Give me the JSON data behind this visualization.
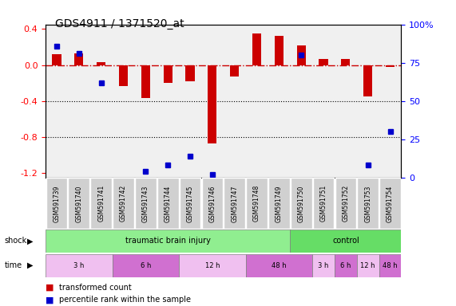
{
  "title": "GDS4911 / 1371520_at",
  "samples": [
    "GSM591739",
    "GSM591740",
    "GSM591741",
    "GSM591742",
    "GSM591743",
    "GSM591744",
    "GSM591745",
    "GSM591746",
    "GSM591747",
    "GSM591748",
    "GSM591749",
    "GSM591750",
    "GSM591751",
    "GSM591752",
    "GSM591753",
    "GSM591754"
  ],
  "red_values": [
    0.12,
    0.13,
    0.03,
    -0.23,
    -0.37,
    -0.2,
    -0.18,
    -0.87,
    -0.13,
    0.35,
    0.32,
    0.22,
    0.07,
    0.07,
    -0.35,
    -0.02
  ],
  "blue_values": [
    86,
    81,
    62,
    null,
    4,
    8,
    14,
    2,
    null,
    null,
    null,
    80,
    null,
    null,
    8,
    30
  ],
  "blue_markers": [
    [
      0,
      86
    ],
    [
      1,
      81
    ],
    [
      2,
      62
    ],
    [
      3,
      null
    ],
    [
      4,
      4
    ],
    [
      5,
      8
    ],
    [
      6,
      14
    ],
    [
      7,
      2
    ],
    [
      8,
      null
    ],
    [
      9,
      null
    ],
    [
      10,
      null
    ],
    [
      11,
      80
    ],
    [
      12,
      null
    ],
    [
      13,
      null
    ],
    [
      14,
      8
    ],
    [
      15,
      30
    ]
  ],
  "shock_groups": [
    {
      "label": "traumatic brain injury",
      "start": 0,
      "end": 11,
      "color": "#90ee90"
    },
    {
      "label": "control",
      "start": 11,
      "end": 15,
      "color": "#90ee90"
    }
  ],
  "time_groups": [
    {
      "label": "3 h",
      "start": 0,
      "end": 3,
      "color": "#e8a0e8"
    },
    {
      "label": "6 h",
      "start": 3,
      "end": 6,
      "color": "#d070d0"
    },
    {
      "label": "12 h",
      "start": 6,
      "end": 9,
      "color": "#e8a0e8"
    },
    {
      "label": "48 h",
      "start": 9,
      "end": 12,
      "color": "#d070d0"
    },
    {
      "label": "3 h",
      "start": 12,
      "end": 13,
      "color": "#e8a0e8"
    },
    {
      "label": "6 h",
      "start": 13,
      "end": 14,
      "color": "#d070d0"
    },
    {
      "label": "12 h",
      "start": 14,
      "end": 15,
      "color": "#e8a0e8"
    },
    {
      "label": "48 h",
      "start": 15,
      "end": 16,
      "color": "#d070d0"
    }
  ],
  "ylim_left": [
    -1.25,
    0.45
  ],
  "ylim_right": [
    0,
    100
  ],
  "red_color": "#cc0000",
  "blue_color": "#0000cc",
  "hline_y": 0.0,
  "hline_color": "#cc0000",
  "dotted_lines": [
    -0.4,
    -0.8
  ],
  "right_ticks": [
    0,
    25,
    50,
    75,
    100
  ],
  "right_tick_labels": [
    "0",
    "25",
    "50",
    "75",
    "100%"
  ],
  "left_ticks": [
    -1.2,
    -0.8,
    -0.4,
    0.0,
    0.4
  ],
  "background_color": "#ffffff",
  "plot_bg": "#f5f5f5"
}
